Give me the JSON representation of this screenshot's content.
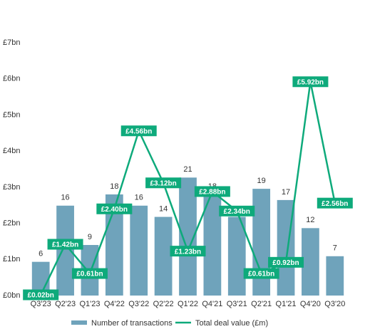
{
  "chart_data": {
    "type": "bar-line",
    "categories": [
      "Q3'23",
      "Q2'23",
      "Q1'23",
      "Q4'22",
      "Q3'22",
      "Q2'22",
      "Q1'22",
      "Q4'21",
      "Q3'21",
      "Q2'21",
      "Q1'21",
      "Q4'20",
      "Q3'20"
    ],
    "series": [
      {
        "name": "Number of transactions",
        "type": "bar",
        "axis": "y2",
        "color": "#6fa3bb",
        "values": [
          6,
          16,
          9,
          18,
          16,
          14,
          21,
          18,
          14,
          19,
          17,
          12,
          7
        ]
      },
      {
        "name": "Total deal value (£m)",
        "type": "line",
        "axis": "y",
        "color": "#0eaa7b",
        "values": [
          0.02,
          1.42,
          0.61,
          2.4,
          4.56,
          3.12,
          1.23,
          2.88,
          2.34,
          0.61,
          0.92,
          5.92,
          2.56
        ],
        "value_labels": [
          "£0.02bn",
          "£1.42bn",
          "£0.61bn",
          "£2.40bn",
          "£4.56bn",
          "£3.12bn",
          "£1.23bn",
          "£2.88bn",
          "£2.34bn",
          "£0.61bn",
          "£0.92bn",
          "£5.92bn",
          "£2.56bn"
        ]
      }
    ],
    "ylim": [
      0,
      7
    ],
    "yticks": [
      {
        "value": 0,
        "label": "£0bn"
      },
      {
        "value": 1,
        "label": "£1bn"
      },
      {
        "value": 2,
        "label": "£2bn"
      },
      {
        "value": 3,
        "label": "£3bn"
      },
      {
        "value": 4,
        "label": "£4bn"
      },
      {
        "value": 5,
        "label": "£5bn"
      },
      {
        "value": 6,
        "label": "£6bn"
      },
      {
        "value": 7,
        "label": "£7bn"
      }
    ],
    "y2lim": [
      0,
      45
    ],
    "grid": false,
    "legend": "bottom"
  }
}
